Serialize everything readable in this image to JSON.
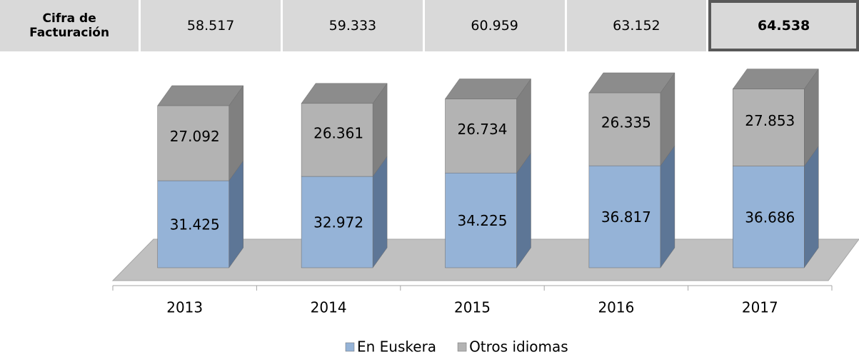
{
  "table": {
    "header": "Cifra de Facturación",
    "cells": [
      "58.517",
      "59.333",
      "60.959",
      "63.152",
      "64.538"
    ]
  },
  "chart_data": {
    "type": "bar3d_stacked",
    "categories": [
      "2013",
      "2014",
      "2015",
      "2016",
      "2017"
    ],
    "series": [
      {
        "name": "En Euskera",
        "color": "#95b3d7",
        "values": [
          31425,
          32972,
          34225,
          36817,
          36686
        ],
        "value_labels": [
          "31.425",
          "32.972",
          "34.225",
          "36.817",
          "36.686"
        ]
      },
      {
        "name": "Otros idiomas",
        "color": "#b3b3b3",
        "values": [
          27092,
          26361,
          26734,
          26335,
          27853
        ],
        "value_labels": [
          "27.092",
          "26.361",
          "26.734",
          "26.335",
          "27.853"
        ]
      }
    ]
  }
}
